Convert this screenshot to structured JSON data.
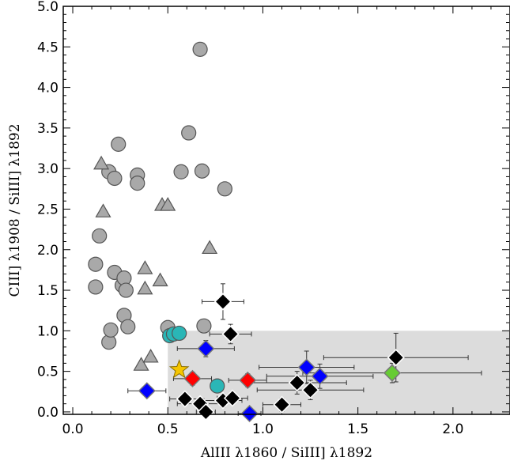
{
  "chart_data": {
    "type": "scatter",
    "title": "",
    "xlabel": "AlIII λ1860 / SiIII] λ1892",
    "ylabel": "CIII] λ1908 / SiIII] λ1892",
    "xlim": [
      -0.05,
      2.3
    ],
    "ylim": [
      -0.03,
      5.0
    ],
    "xticks": [
      0.0,
      0.5,
      1.0,
      1.5,
      2.0
    ],
    "xtick_labels": [
      "0.0",
      "0.5",
      "1.0",
      "1.5",
      "2.0"
    ],
    "yticks": [
      0.0,
      0.5,
      1.0,
      1.5,
      2.0,
      2.5,
      3.0,
      3.5,
      4.0,
      4.5,
      5.0
    ],
    "ytick_labels": [
      "0.0",
      "0.5",
      "1.0",
      "1.5",
      "2.0",
      "2.5",
      "3.0",
      "3.5",
      "4.0",
      "4.5",
      "5.0"
    ],
    "grid": false,
    "shaded_region": {
      "x": [
        0.5,
        2.3
      ],
      "y": [
        -0.03,
        1.0
      ],
      "color": "#dcdcdc"
    },
    "series": [
      {
        "marker": "circle",
        "color": "#a9a9a9",
        "points": [
          {
            "x": 0.12,
            "y": 1.82
          },
          {
            "x": 0.12,
            "y": 1.54
          },
          {
            "x": 0.14,
            "y": 2.17
          },
          {
            "x": 0.19,
            "y": 0.86
          },
          {
            "x": 0.19,
            "y": 2.96
          },
          {
            "x": 0.2,
            "y": 1.01
          },
          {
            "x": 0.22,
            "y": 2.88
          },
          {
            "x": 0.22,
            "y": 1.72
          },
          {
            "x": 0.24,
            "y": 3.3
          },
          {
            "x": 0.26,
            "y": 1.56
          },
          {
            "x": 0.27,
            "y": 1.65
          },
          {
            "x": 0.27,
            "y": 1.19
          },
          {
            "x": 0.28,
            "y": 1.5
          },
          {
            "x": 0.29,
            "y": 1.05
          },
          {
            "x": 0.34,
            "y": 2.92
          },
          {
            "x": 0.34,
            "y": 2.82
          },
          {
            "x": 0.5,
            "y": 1.04
          },
          {
            "x": 0.57,
            "y": 2.96
          },
          {
            "x": 0.61,
            "y": 3.44
          },
          {
            "x": 0.67,
            "y": 4.47
          },
          {
            "x": 0.68,
            "y": 2.97
          },
          {
            "x": 0.69,
            "y": 1.06
          },
          {
            "x": 0.8,
            "y": 2.75
          }
        ]
      },
      {
        "marker": "triangle",
        "color": "#a9a9a9",
        "points": [
          {
            "x": 0.15,
            "y": 3.06
          },
          {
            "x": 0.16,
            "y": 2.47
          },
          {
            "x": 0.36,
            "y": 0.58
          },
          {
            "x": 0.38,
            "y": 1.77
          },
          {
            "x": 0.38,
            "y": 1.52
          },
          {
            "x": 0.41,
            "y": 0.68
          },
          {
            "x": 0.46,
            "y": 1.62
          },
          {
            "x": 0.47,
            "y": 2.55
          },
          {
            "x": 0.5,
            "y": 2.55
          },
          {
            "x": 0.72,
            "y": 2.02
          }
        ]
      },
      {
        "marker": "circle",
        "color": "#2ab6b6",
        "points": [
          {
            "x": 0.51,
            "y": 0.94
          },
          {
            "x": 0.53,
            "y": 0.96
          },
          {
            "x": 0.56,
            "y": 0.97
          },
          {
            "x": 0.76,
            "y": 0.32
          }
        ]
      },
      {
        "marker": "star",
        "color": "#f5c500",
        "points": [
          {
            "x": 0.56,
            "y": 0.52
          }
        ]
      },
      {
        "marker": "diamond",
        "color": "#ff0000",
        "points": [
          {
            "x": 0.63,
            "y": 0.41,
            "xerr": 0.1,
            "yerr": 0.08
          },
          {
            "x": 0.92,
            "y": 0.39,
            "xerr": 0.1,
            "yerr": 0.08
          }
        ]
      },
      {
        "marker": "diamond",
        "color": "#0000ff",
        "points": [
          {
            "x": 0.39,
            "y": 0.26,
            "xerr": 0.1,
            "yerr": 0.05
          },
          {
            "x": 0.7,
            "y": 0.78,
            "xerr": 0.15,
            "yerr": 0.1
          },
          {
            "x": 0.93,
            "y": -0.02,
            "xerr": 0.06,
            "yerr": 0.04
          },
          {
            "x": 1.23,
            "y": 0.55,
            "xerr": 0.25,
            "yerr": 0.2
          },
          {
            "x": 1.3,
            "y": 0.44,
            "xerr": 0.28,
            "yerr": 0.15
          }
        ]
      },
      {
        "marker": "diamond",
        "color": "#66cc33",
        "points": [
          {
            "x": 1.68,
            "y": 0.48,
            "xerr": 0.47,
            "yerr": 0.12
          }
        ]
      },
      {
        "marker": "diamond",
        "color": "#000000",
        "points": [
          {
            "x": 0.59,
            "y": 0.16,
            "xerr": 0.08,
            "yerr": 0.06
          },
          {
            "x": 0.67,
            "y": 0.1,
            "xerr": 0.12,
            "yerr": 0.07
          },
          {
            "x": 0.7,
            "y": 0.0,
            "xerr": 0.05,
            "yerr": 0.04
          },
          {
            "x": 0.79,
            "y": 0.14,
            "xerr": 0.1,
            "yerr": 0.08
          },
          {
            "x": 0.79,
            "y": 1.36,
            "xerr": 0.11,
            "yerr": 0.22
          },
          {
            "x": 0.83,
            "y": 0.96,
            "xerr": 0.11,
            "yerr": 0.12
          },
          {
            "x": 0.84,
            "y": 0.17,
            "xerr": 0.08,
            "yerr": 0.07
          },
          {
            "x": 1.1,
            "y": 0.09,
            "xerr": 0.1,
            "yerr": 0.08
          },
          {
            "x": 1.18,
            "y": 0.36,
            "xerr": 0.26,
            "yerr": 0.14
          },
          {
            "x": 1.25,
            "y": 0.27,
            "xerr": 0.28,
            "yerr": 0.12
          },
          {
            "x": 1.7,
            "y": 0.67,
            "xerr": 0.38,
            "yerr": 0.3
          }
        ]
      }
    ]
  }
}
